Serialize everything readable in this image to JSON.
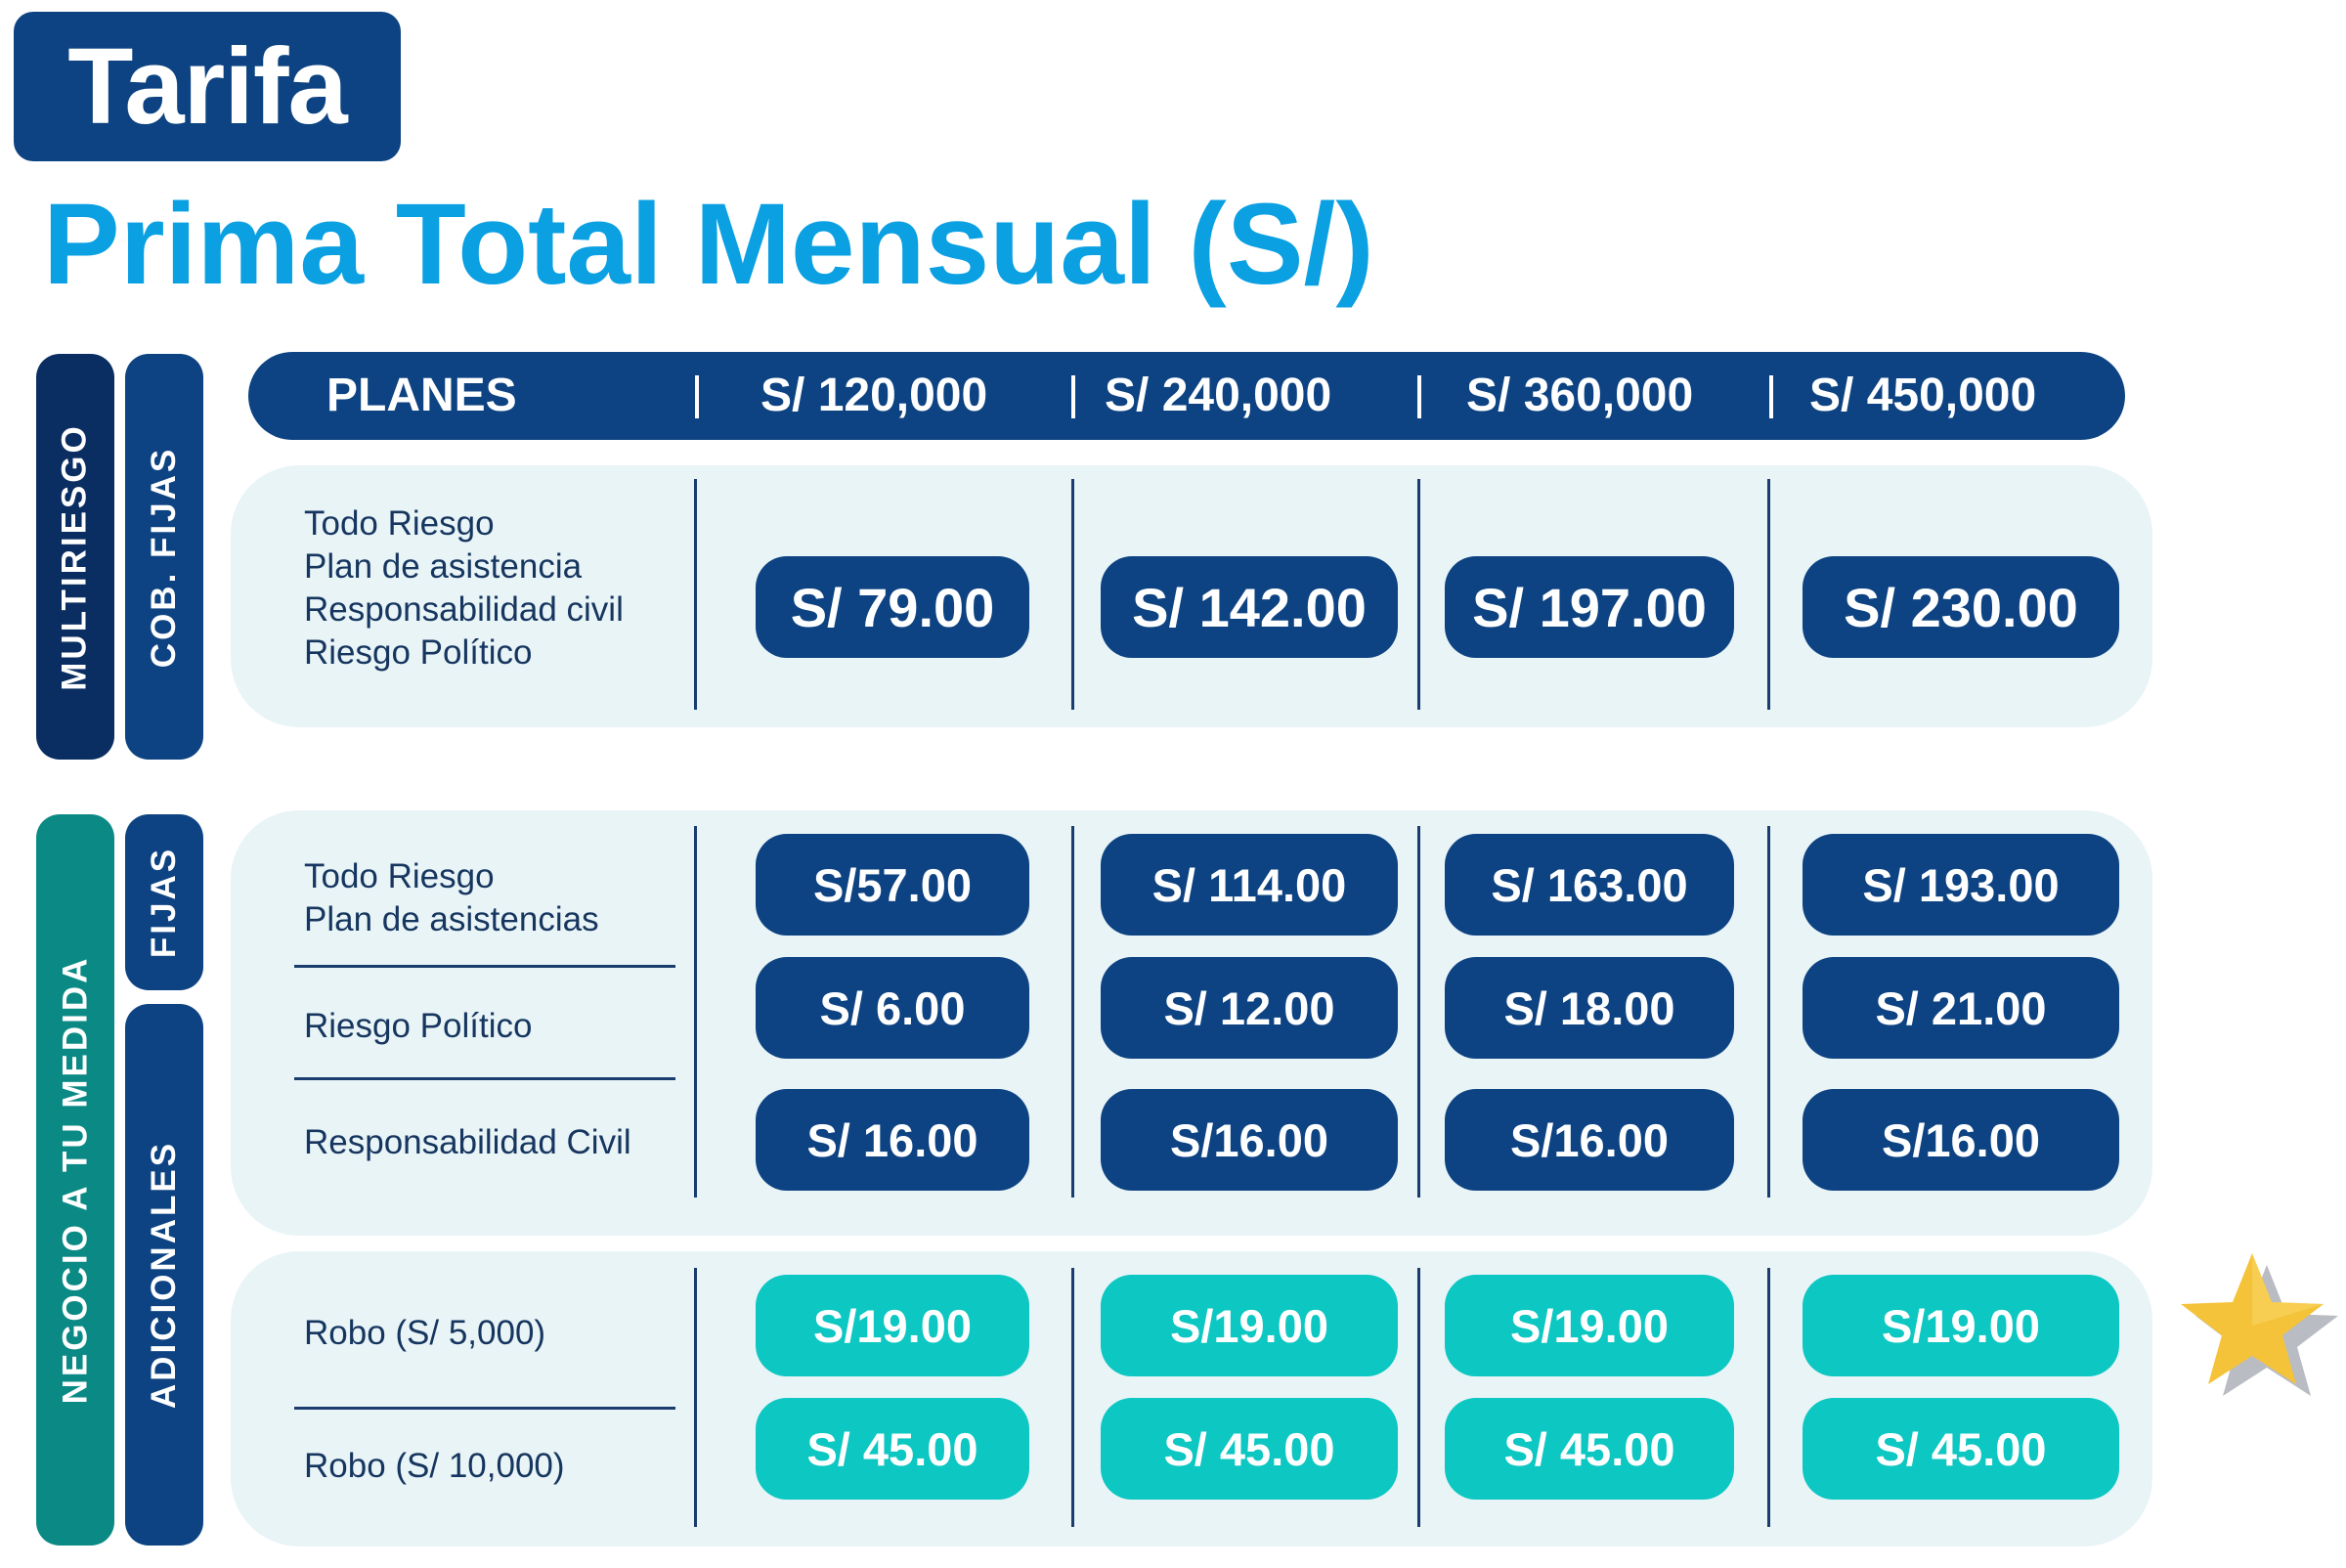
{
  "heading": {
    "tag": "Tarifa",
    "title": "Prima Total Mensual (S/)"
  },
  "sections": {
    "multiriesgo": "MULTIRIESGO",
    "cob_fijas": "COB. FIJAS",
    "negocio": "NEGOCIO A TU MEDIDA",
    "fijas": "FIJAS",
    "adicionales": "ADICIONALES"
  },
  "header": {
    "planes_label": "PLANES",
    "separator": "|",
    "columns": [
      "S/ 120,000",
      "S/ 240,000",
      "S/ 360,000",
      "S/ 450,000"
    ]
  },
  "multiriesgo_row": {
    "items": [
      "Todo Riesgo",
      "Plan de asistencia",
      "Responsabilidad civil",
      "Riesgo Político"
    ],
    "prices": [
      "S/ 79.00",
      "S/ 142.00",
      "S/ 197.00",
      "S/ 230.00"
    ]
  },
  "negocio_rows": [
    {
      "labels": [
        "Todo Riesgo",
        "Plan de asistencias"
      ],
      "prices": [
        "S/57.00",
        "S/ 114.00",
        "S/ 163.00",
        "S/ 193.00"
      ]
    },
    {
      "labels": [
        "Riesgo Político"
      ],
      "prices": [
        "S/ 6.00",
        "S/ 12.00",
        "S/ 18.00",
        "S/ 21.00"
      ]
    },
    {
      "labels": [
        "Responsabilidad Civil"
      ],
      "prices": [
        "S/ 16.00",
        "S/16.00",
        "S/16.00",
        "S/16.00"
      ]
    }
  ],
  "robo_rows": [
    {
      "label": "Robo (S/ 5,000)",
      "prices": [
        "S/19.00",
        "S/19.00",
        "S/19.00",
        "S/19.00"
      ]
    },
    {
      "label": "Robo (S/ 10,000)",
      "prices": [
        "S/ 45.00",
        "S/ 45.00",
        "S/ 45.00",
        "S/ 45.00"
      ]
    }
  ],
  "colors": {
    "navy": "#0d4382",
    "dark_navy": "#0a2e61",
    "teal_side": "#0b8a85",
    "teal_pill": "#0cc7c2",
    "title_blue": "#0aa0e2",
    "panel_bg": "#e9f4f7",
    "star": "#f5c33a"
  },
  "icons": {
    "star": "star-icon"
  }
}
